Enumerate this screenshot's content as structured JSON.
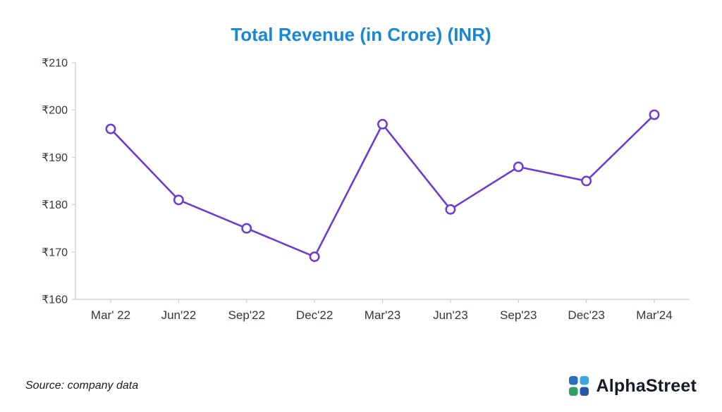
{
  "footer": {
    "source": "Source: company data",
    "brand": "AlphaStreet"
  },
  "colors": {
    "title": "#1789d4",
    "line": "#6c3bd6",
    "marker_fill": "#ffffff",
    "axis": "#c8cdd2",
    "tick_text": "#33373d",
    "brand_text": "#151b28",
    "logo_petals": [
      "#2a6fbe",
      "#3aa9e0",
      "#2f9e62",
      "#2456a4"
    ]
  },
  "chart_data": {
    "type": "line",
    "title": "Total Revenue (in Crore) (INR)",
    "categories": [
      "Mar' 22",
      "Jun'22",
      "Sep'22",
      "Dec'22",
      "Mar'23",
      "Jun'23",
      "Sep'23",
      "Dec'23",
      "Mar'24"
    ],
    "values": [
      196,
      181,
      175,
      169,
      197,
      179,
      188,
      185,
      199
    ],
    "series_name": "Total Revenue (INR Crore)",
    "ylabel_prefix": "₹",
    "ylim": [
      160,
      210
    ],
    "yticks": [
      160,
      170,
      180,
      190,
      200,
      210
    ],
    "grid": false,
    "legend": "none",
    "marker": "circle-open"
  }
}
